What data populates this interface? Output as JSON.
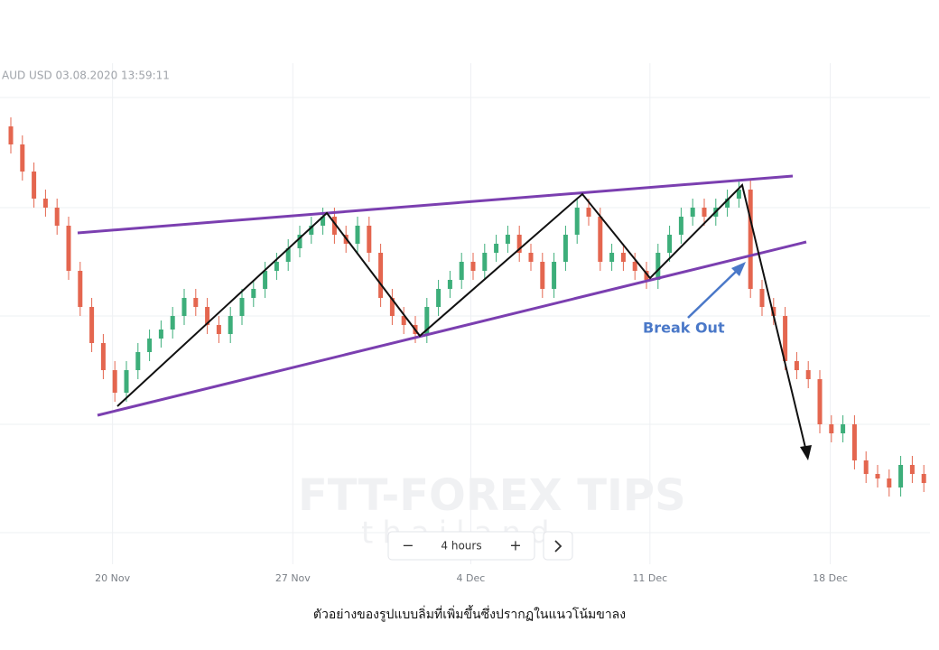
{
  "chart_data": {
    "type": "candlestick",
    "title": "AUD USD  03.08.2020 13:59:11",
    "annotations": {
      "breakout": "Break Out",
      "watermark": "FTT-FOREX TIPS",
      "watermark_sub": "thailand",
      "interval": "4 hours",
      "caption": "ตัวอย่างของรูปแบบลิ่มที่เพิ่มขึ้นซึ่งปรากฏในแนวโน้มขาลง"
    },
    "up_color": "#3dae7a",
    "down_color": "#e4664f",
    "xlim": [
      -0.5,
      79.5
    ],
    "xticks": [
      {
        "value": 8.8,
        "label": "20 Nov"
      },
      {
        "value": 24.4,
        "label": "27 Nov"
      },
      {
        "value": 39.8,
        "label": "4 Dec"
      },
      {
        "value": 55.3,
        "label": "11 Dec"
      },
      {
        "value": 70.9,
        "label": "18 Dec"
      }
    ],
    "ylim": [
      0,
      100
    ],
    "open": [
      92,
      88,
      82,
      76,
      74,
      70,
      60,
      52,
      44,
      38,
      33,
      38,
      42,
      45,
      47,
      50,
      54,
      52,
      48,
      46,
      50,
      54,
      56,
      60,
      62,
      65,
      68,
      70,
      72,
      68,
      66,
      70,
      64,
      54,
      50,
      48,
      46,
      52,
      56,
      58,
      62,
      60,
      64,
      66,
      68,
      64,
      62,
      56,
      62,
      68,
      74,
      72,
      62,
      64,
      62,
      60,
      58,
      64,
      68,
      72,
      74,
      72,
      74,
      76,
      78,
      56,
      52,
      50,
      40,
      38,
      36,
      26,
      24,
      26,
      18,
      15,
      14,
      12,
      17,
      15
    ],
    "high": [
      94,
      90,
      84,
      78,
      76,
      72,
      62,
      54,
      46,
      40,
      40,
      44,
      47,
      49,
      52,
      56,
      56,
      54,
      50,
      52,
      56,
      58,
      62,
      64,
      67,
      70,
      72,
      74,
      74,
      70,
      72,
      72,
      66,
      56,
      52,
      50,
      54,
      58,
      60,
      64,
      64,
      66,
      68,
      70,
      70,
      66,
      64,
      64,
      70,
      76,
      76,
      74,
      66,
      66,
      64,
      62,
      66,
      70,
      74,
      76,
      76,
      76,
      78,
      80,
      80,
      58,
      54,
      52,
      42,
      40,
      38,
      28,
      28,
      28,
      20,
      17,
      16,
      19,
      19,
      17
    ],
    "low": [
      86,
      80,
      74,
      72,
      68,
      58,
      50,
      42,
      36,
      31,
      31,
      36,
      40,
      43,
      45,
      48,
      50,
      46,
      44,
      44,
      48,
      52,
      54,
      58,
      60,
      63,
      66,
      68,
      66,
      64,
      64,
      62,
      52,
      48,
      46,
      44,
      44,
      50,
      54,
      56,
      58,
      58,
      62,
      64,
      62,
      60,
      54,
      54,
      60,
      66,
      70,
      60,
      60,
      60,
      58,
      56,
      56,
      62,
      66,
      70,
      70,
      70,
      72,
      74,
      54,
      50,
      48,
      38,
      36,
      34,
      24,
      22,
      22,
      16,
      13,
      12,
      10,
      10,
      13,
      11
    ],
    "close": [
      88,
      82,
      76,
      74,
      70,
      60,
      52,
      44,
      38,
      33,
      38,
      42,
      45,
      47,
      50,
      54,
      52,
      48,
      46,
      50,
      54,
      56,
      60,
      62,
      65,
      68,
      70,
      72,
      68,
      66,
      70,
      64,
      54,
      50,
      48,
      46,
      52,
      56,
      58,
      62,
      60,
      64,
      66,
      68,
      64,
      62,
      56,
      62,
      68,
      74,
      72,
      62,
      64,
      62,
      60,
      58,
      64,
      68,
      72,
      74,
      72,
      74,
      76,
      78,
      56,
      52,
      50,
      40,
      38,
      36,
      26,
      24,
      26,
      18,
      15,
      14,
      12,
      17,
      15,
      13
    ],
    "grid": true
  }
}
